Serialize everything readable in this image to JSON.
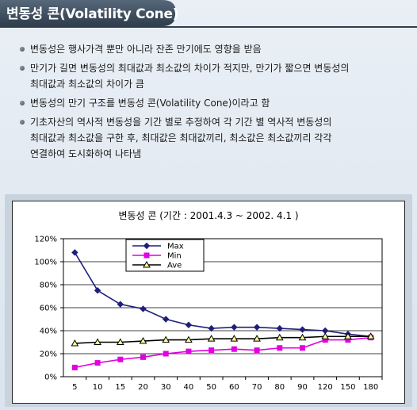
{
  "header": {
    "title": "변동성 콘(Volatility Cone)"
  },
  "bullets": [
    {
      "lines": [
        "변동성은 행사가격 뿐만 아니라 잔존 만기에도 영향을 받음"
      ]
    },
    {
      "lines": [
        "만기가 길면 변동성의 최대값과 최소값의 차이가 적지만, 만기가 짧으면 변동성의",
        "최대값과 최소값의 차이가 큼"
      ]
    },
    {
      "lines": [
        "변동성의 만기 구조를 변동성 콘(Volatility Cone)이라고 함"
      ]
    },
    {
      "lines": [
        "기초자산의 역사적 변동성을 기간 별로 추정하여 각 기간 별 역사적 변동성의",
        "최대값과 최소값을 구한 후, 최대값은 최대값끼리, 최소값은 최소값끼리 각각",
        "연결하여 도시화하여 나타냄"
      ]
    }
  ],
  "colors": {
    "title_bar": "#3f4f60",
    "max_series": "#1f1f7a",
    "min_series": "#e000e0",
    "ave_series": "#000000"
  },
  "chart_data": {
    "type": "line",
    "title": "변동성 콘 (기간 : 2001.4.3 ~ 2002. 4.1 )",
    "categories": [
      "5",
      "10",
      "15",
      "20",
      "30",
      "40",
      "50",
      "60",
      "70",
      "80",
      "90",
      "120",
      "150",
      "180"
    ],
    "y_ticks": [
      "0%",
      "20%",
      "40%",
      "60%",
      "80%",
      "100%",
      "120%"
    ],
    "ylim": [
      0,
      120
    ],
    "xlabel": "",
    "ylabel": "",
    "legend_position": "top-left",
    "grid": true,
    "series": [
      {
        "name": "Max",
        "marker": "diamond",
        "values": [
          108,
          75,
          63,
          59,
          50,
          45,
          42,
          43,
          43,
          42,
          41,
          40,
          37,
          35
        ]
      },
      {
        "name": "Min",
        "marker": "square",
        "values": [
          8,
          12,
          15,
          17,
          20,
          22,
          23,
          24,
          23,
          25,
          25,
          32,
          32,
          34
        ]
      },
      {
        "name": "Ave",
        "marker": "triangle",
        "values": [
          29,
          30,
          30,
          31,
          32,
          32,
          33,
          33,
          33,
          34,
          34,
          35,
          35,
          35
        ]
      }
    ]
  }
}
